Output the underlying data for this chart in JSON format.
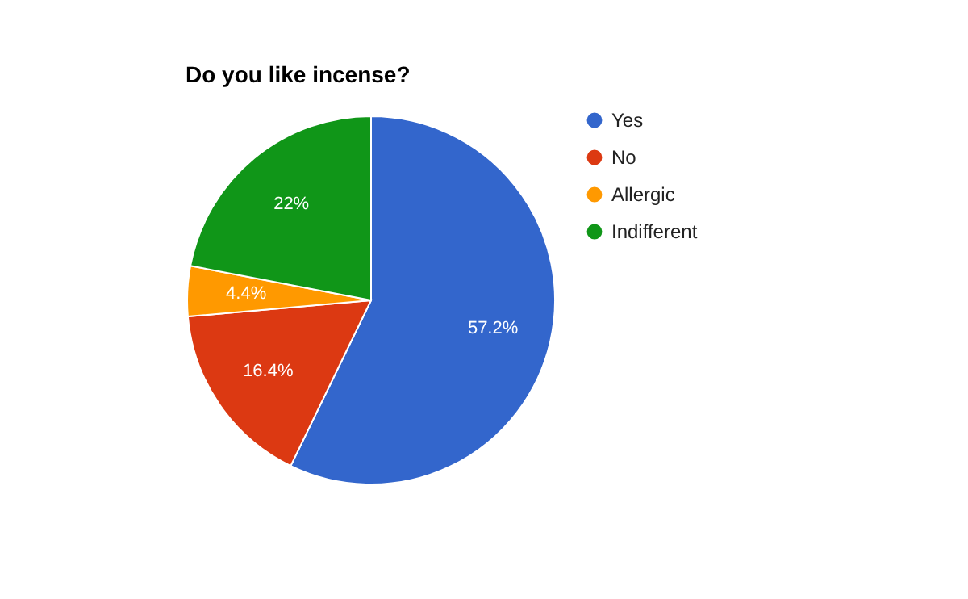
{
  "chart_data": {
    "type": "pie",
    "title": "Do you like incense?",
    "categories": [
      "Yes",
      "No",
      "Allergic",
      "Indifferent"
    ],
    "values": [
      57.2,
      16.4,
      4.4,
      22
    ],
    "colors": [
      "#3366cc",
      "#dc3912",
      "#ff9900",
      "#109618"
    ],
    "value_labels": [
      "57.2%",
      "16.4%",
      "4.4%",
      "22%"
    ],
    "legend": "right"
  }
}
